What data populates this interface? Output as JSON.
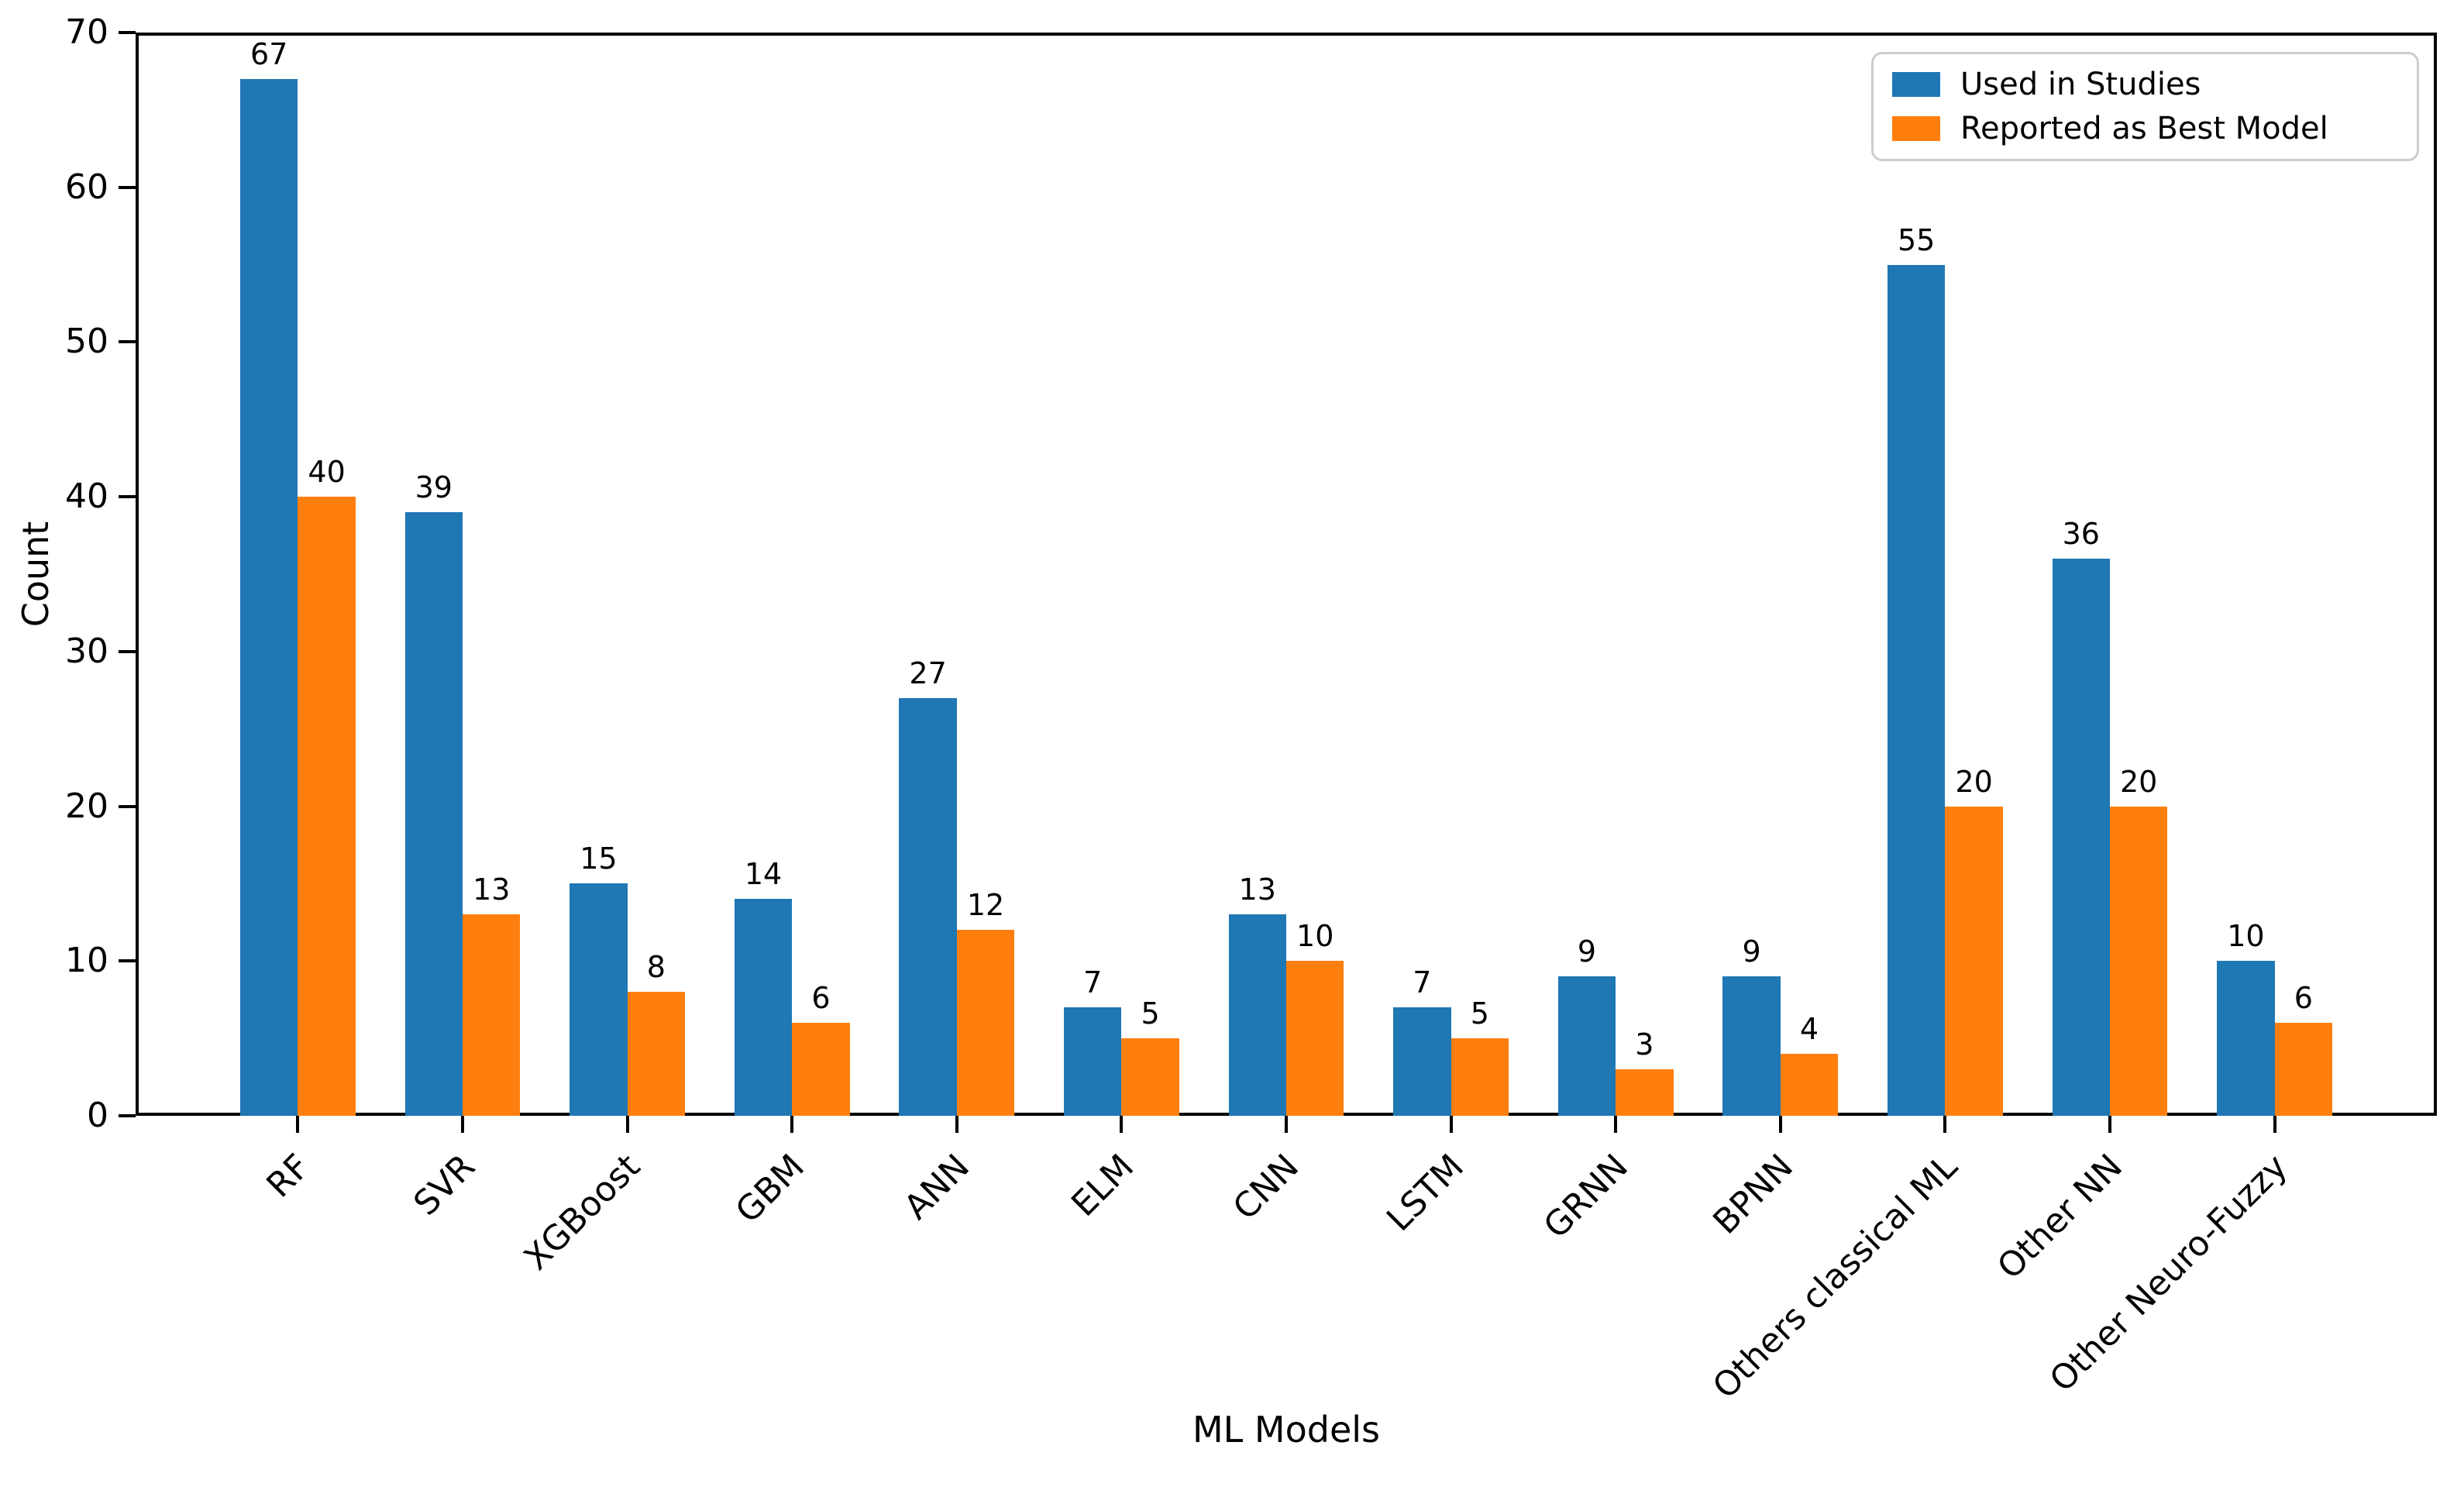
{
  "figure": {
    "ylabel": "Count",
    "xlabel": "ML Models"
  },
  "chart_data": {
    "type": "bar",
    "title": "",
    "xlabel": "ML Models",
    "ylabel": "Count",
    "ylim": [
      0,
      70
    ],
    "yticks": [
      0,
      10,
      20,
      30,
      40,
      50,
      60,
      70
    ],
    "grid": false,
    "legend_position": "upper right",
    "bar_value_labels": true,
    "categories": [
      "RF",
      "SVR",
      "XGBoost",
      "GBM",
      "ANN",
      "ELM",
      "CNN",
      "LSTM",
      "GRNN",
      "BPNN",
      "Others classical ML",
      "Other NN",
      "Other Neuro-Fuzzy"
    ],
    "series": [
      {
        "name": "Used in Studies",
        "color": "#1f77b4",
        "values": [
          67,
          39,
          15,
          14,
          27,
          7,
          13,
          7,
          9,
          9,
          55,
          36,
          10
        ]
      },
      {
        "name": "Reported as Best Model",
        "color": "#ff7f0e",
        "values": [
          40,
          13,
          8,
          6,
          12,
          5,
          10,
          5,
          3,
          4,
          20,
          20,
          6
        ]
      }
    ]
  }
}
